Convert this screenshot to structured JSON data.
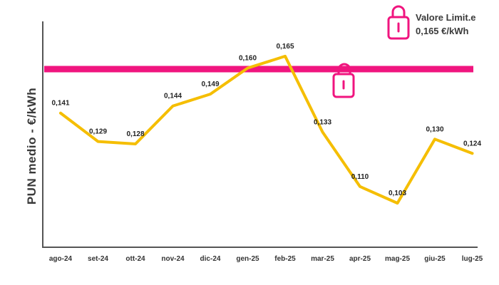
{
  "chart_data": {
    "type": "line",
    "title": "",
    "ylabel": "PUN medio - €/kWh",
    "xlabel": "",
    "categories": [
      "ago-24",
      "set-24",
      "ott-24",
      "nov-24",
      "dic-24",
      "gen-25",
      "feb-25",
      "mar-25",
      "apr-25",
      "mag-25",
      "giu-25",
      "lug-25"
    ],
    "values": [
      0.141,
      0.129,
      0.128,
      0.144,
      0.149,
      0.16,
      0.165,
      0.133,
      0.11,
      0.103,
      0.13,
      0.124
    ],
    "data_labels": [
      "0,141",
      "0,129",
      "0,128",
      "0,144",
      "0,149",
      "0,160",
      "0,165",
      "0,133",
      "0,110",
      "0,103",
      "0,130",
      "0,124"
    ],
    "ylim": [
      0.085,
      0.18
    ],
    "grid": false,
    "line_color": "#F5BE00",
    "axis_color": "#555555",
    "reference_line": {
      "value": 0.165,
      "color": "#F0157F",
      "label_line1": "Valore Limit.e",
      "label_line2": "0,165 €/kWh",
      "icon": "lock-icon"
    }
  }
}
